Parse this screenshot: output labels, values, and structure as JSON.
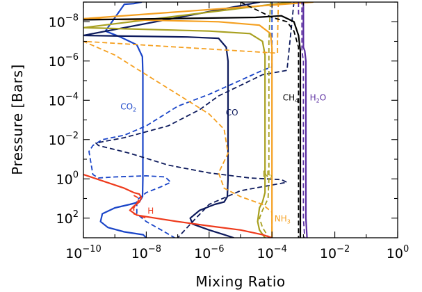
{
  "chart_data": {
    "type": "line",
    "title": "",
    "xlabel": "Mixing Ratio",
    "ylabel": "Pressure [Bars]",
    "x_scale": "log",
    "y_scale": "log",
    "y_inverted": true,
    "xlim": [
      1e-10,
      1
    ],
    "ylim": [
      1000,
      1e-09
    ],
    "x_ticks": [
      {
        "base": "10",
        "exp": "−10",
        "value": 1e-10
      },
      {
        "base": "10",
        "exp": "−8",
        "value": 1e-08
      },
      {
        "base": "10",
        "exp": "−6",
        "value": 1e-06
      },
      {
        "base": "10",
        "exp": "−4",
        "value": 0.0001
      },
      {
        "base": "10",
        "exp": "−2",
        "value": 0.01
      },
      {
        "base": "10",
        "exp": "0",
        "value": 1
      }
    ],
    "y_ticks": [
      {
        "base": "10",
        "exp": "−8",
        "value": 1e-08
      },
      {
        "base": "10",
        "exp": "−6",
        "value": 1e-06
      },
      {
        "base": "10",
        "exp": "−4",
        "value": 0.0001
      },
      {
        "base": "10",
        "exp": "−2",
        "value": 0.01
      },
      {
        "base": "10",
        "exp": "0",
        "value": 1
      },
      {
        "base": "10",
        "exp": "2",
        "value": 100
      }
    ],
    "grid": false,
    "legend": "none (inline labels)",
    "series": [
      {
        "name": "CO2",
        "label_main": "CO",
        "label_sub": "2",
        "label_x": 1.5e-09,
        "label_y": 0.0003,
        "color": "#1a45c8",
        "solid": [
          [
            7e-09,
            1e-09
          ],
          [
            4e-09,
            1.2e-09
          ],
          [
            2e-09,
            1.3e-09
          ],
          [
            5e-10,
            3e-08
          ],
          [
            1.5e-09,
            6e-08
          ],
          [
            5e-09,
            1.5e-07
          ],
          [
            7.5e-09,
            6e-07
          ],
          [
            7.8e-09,
            5e-06
          ],
          [
            7.8e-09,
            0.0001
          ],
          [
            7.8e-09,
            0.01
          ],
          [
            7.8e-09,
            1
          ],
          [
            7.6e-09,
            8
          ],
          [
            6e-09,
            15
          ],
          [
            3e-09,
            20
          ],
          [
            1e-09,
            30
          ],
          [
            4e-10,
            60
          ],
          [
            3.5e-10,
            150
          ],
          [
            6e-10,
            300
          ],
          [
            2e-09,
            500
          ],
          [
            8e-09,
            700
          ],
          [
            1e-08,
            1000
          ]
        ],
        "dashed": [
          [
            0.0001,
            1e-09
          ],
          [
            0.0001,
            2e-06
          ],
          [
            5e-05,
            3e-06
          ],
          [
            1e-06,
            5e-05
          ],
          [
            1e-07,
            0.0002
          ],
          [
            1e-08,
            0.002
          ],
          [
            2e-09,
            0.006
          ],
          [
            4e-10,
            0.01
          ],
          [
            2e-10,
            0.02
          ],
          [
            1.5e-10,
            0.04
          ],
          [
            2e-10,
            0.6
          ],
          [
            3e-10,
            0.9
          ],
          [
            1e-09,
            0.8
          ],
          [
            1e-08,
            0.7
          ],
          [
            4e-08,
            0.8
          ],
          [
            6e-08,
            1.5
          ],
          [
            3e-08,
            2.5
          ],
          [
            1e-08,
            5
          ],
          [
            5e-09,
            12
          ],
          [
            5e-09,
            60
          ],
          [
            1e-08,
            150
          ],
          [
            3e-08,
            400
          ],
          [
            8e-08,
            1000
          ]
        ]
      },
      {
        "name": "CO",
        "label_main": "CO",
        "label_sub": "",
        "label_x": 3.4e-06,
        "label_y": 0.0006,
        "color": "#0d1a5c",
        "solid": [
          [
            4e-05,
            1e-09
          ],
          [
            1e-10,
            5e-08
          ],
          [
            2e-07,
            6e-08
          ],
          [
            2e-06,
            7e-08
          ],
          [
            3.5e-06,
            2e-07
          ],
          [
            4e-06,
            1e-06
          ],
          [
            4e-06,
            0.0001
          ],
          [
            4e-06,
            0.01
          ],
          [
            4e-06,
            1
          ],
          [
            3.8e-06,
            8
          ],
          [
            3e-06,
            15
          ],
          [
            1.5e-06,
            20
          ],
          [
            5e-07,
            40
          ],
          [
            2.5e-07,
            100
          ],
          [
            3e-07,
            200
          ],
          [
            1e-06,
            400
          ],
          [
            3e-06,
            700
          ],
          [
            6e-06,
            1000
          ]
        ],
        "dashed": [
          [
            0.0005,
            1e-09
          ],
          [
            0.0003,
            3e-06
          ],
          [
            5e-05,
            5e-06
          ],
          [
            2e-06,
            6e-05
          ],
          [
            5e-07,
            0.0003
          ],
          [
            5e-08,
            0.002
          ],
          [
            2e-09,
            0.008
          ],
          [
            2.5e-10,
            0.015
          ],
          [
            3e-10,
            0.02
          ],
          [
            3e-09,
            0.05
          ],
          [
            5e-08,
            0.2
          ],
          [
            1e-06,
            0.5
          ],
          [
            2e-05,
            0.9
          ],
          [
            0.0002,
            1.1
          ],
          [
            0.0003,
            1.5
          ],
          [
            1e-05,
            4
          ],
          [
            1e-06,
            20
          ],
          [
            3e-07,
            150
          ],
          [
            1e-07,
            1000
          ]
        ]
      },
      {
        "name": "N2",
        "label_main": "N",
        "label_sub": "2",
        "label_x": 5e-05,
        "label_y": 0.8,
        "color": "#a8a020",
        "solid": [
          [
            0.0004,
            1e-09
          ],
          [
            1e-10,
            2e-08
          ],
          [
            1e-06,
            3e-08
          ],
          [
            2e-05,
            4e-08
          ],
          [
            5e-05,
            1e-07
          ],
          [
            6e-05,
            5e-07
          ],
          [
            6e-05,
            0.0001
          ],
          [
            6e-05,
            0.01
          ],
          [
            6e-05,
            1
          ],
          [
            6e-05,
            5
          ],
          [
            5e-05,
            15
          ],
          [
            4e-05,
            30
          ],
          [
            3.5e-05,
            150
          ],
          [
            4e-05,
            400
          ],
          [
            6e-05,
            1000
          ]
        ],
        "dashed": [
          [
            9e-05,
            1e-09
          ],
          [
            8e-05,
            1e-07
          ],
          [
            8e-05,
            0.01
          ],
          [
            8e-05,
            1
          ],
          [
            7.5e-05,
            10
          ],
          [
            5e-05,
            40
          ],
          [
            4e-05,
            100
          ],
          [
            5e-05,
            300
          ],
          [
            8e-05,
            1000
          ]
        ]
      },
      {
        "name": "NH3",
        "label_main": "NH",
        "label_sub": "3",
        "label_x": 0.00012,
        "label_y": 150,
        "color": "#f5a020",
        "solid": [
          [
            0.002,
            1e-09
          ],
          [
            1e-10,
            7e-09
          ],
          [
            2e-06,
            1e-08
          ],
          [
            4e-05,
            1.5e-08
          ],
          [
            9e-05,
            4e-08
          ],
          [
            0.0001,
            2e-07
          ],
          [
            0.0001,
            0.0001
          ],
          [
            0.0001,
            0.01
          ],
          [
            0.0001,
            1
          ],
          [
            0.0001,
            100
          ],
          [
            0.0001,
            1000
          ]
        ],
        "dashed": [
          [
            0.00016,
            1e-09
          ],
          [
            0.00015,
            1e-07
          ],
          [
            0.00015,
            4e-07
          ],
          [
            1e-10,
            1e-07
          ],
          [
            1e-09,
            5e-07
          ],
          [
            1e-08,
            5e-06
          ],
          [
            1e-07,
            5e-05
          ],
          [
            1e-06,
            0.0005
          ],
          [
            3e-06,
            0.003
          ],
          [
            4e-06,
            0.05
          ],
          [
            2e-06,
            0.5
          ],
          [
            3e-06,
            3
          ],
          [
            1e-05,
            8
          ],
          [
            5e-05,
            20
          ],
          [
            0.0001,
            50
          ],
          [
            0.0001,
            1000
          ]
        ]
      },
      {
        "name": "H",
        "label_main": "H",
        "label_sub": "",
        "label_x": 1.1e-08,
        "label_y": 60,
        "color": "#ee3a1c",
        "solid": [
          [
            1e-10,
            0.6
          ],
          [
            2e-09,
            3
          ],
          [
            4e-09,
            5
          ],
          [
            6e-09,
            6
          ],
          [
            7e-09,
            9
          ],
          [
            6e-09,
            15
          ],
          [
            4e-09,
            25
          ],
          [
            3e-09,
            40
          ],
          [
            5e-09,
            70
          ],
          [
            2e-08,
            100
          ],
          [
            1e-07,
            150
          ],
          [
            1e-06,
            250
          ],
          [
            1e-05,
            400
          ],
          [
            5e-05,
            700
          ],
          [
            0.0001,
            1000
          ]
        ],
        "dashed": [
          [
            4e-09,
            7
          ],
          [
            6e-09,
            10
          ],
          [
            5e-09,
            18
          ],
          [
            4e-09,
            30
          ],
          [
            4e-09,
            60
          ],
          [
            1e-08,
            100
          ]
        ]
      },
      {
        "name": "CH4",
        "label_main": "CH",
        "label_sub": "4",
        "label_x": 0.00022,
        "label_y": 0.0001,
        "color": "#000000",
        "solid": [
          [
            1e-10,
            8e-09
          ],
          [
            3e-05,
            6e-09
          ],
          [
            0.0002,
            5e-09
          ],
          [
            0.0005,
            1e-08
          ],
          [
            0.0007,
            5e-08
          ],
          [
            0.0008,
            3e-07
          ],
          [
            0.0008,
            0.0001
          ],
          [
            0.0008,
            0.01
          ],
          [
            0.0008,
            1
          ],
          [
            0.0008,
            100
          ],
          [
            0.0008,
            1000
          ]
        ],
        "dashed": [
          [
            1e-05,
            1e-09
          ],
          [
            0.0001,
            6e-09
          ],
          [
            0.0003,
            1e-08
          ],
          [
            0.0005,
            3e-08
          ],
          [
            0.0007,
            2e-07
          ],
          [
            0.0007,
            0.0001
          ],
          [
            0.0007,
            0.01
          ],
          [
            0.0007,
            1
          ],
          [
            0.0007,
            100
          ],
          [
            0.0007,
            1000
          ]
        ]
      },
      {
        "name": "H2O",
        "label_main": "H",
        "label_sub": "2",
        "label_tail": "O",
        "label_x": 0.0016,
        "label_y": 0.0001,
        "color": "#5a2da0",
        "solid": [
          [
            0.001,
            1e-09
          ],
          [
            0.001,
            2e-07
          ],
          [
            0.0011,
            3e-07
          ],
          [
            0.0012,
            1e-06
          ],
          [
            0.0012,
            0.0001
          ],
          [
            0.0012,
            0.01
          ],
          [
            0.0012,
            1
          ],
          [
            0.0012,
            100
          ],
          [
            0.0013,
            1000
          ]
        ],
        "dashed": [
          [
            0.0007,
            1e-09
          ],
          [
            0.0007,
            4e-09
          ],
          [
            0.0009,
            3e-09
          ],
          [
            0.0009,
            1e-09
          ],
          [
            0.0009,
            3e-07
          ],
          [
            0.001,
            1e-06
          ],
          [
            0.001,
            0.0001
          ],
          [
            0.001,
            0.01
          ],
          [
            0.001,
            1
          ],
          [
            0.001,
            100
          ],
          [
            0.0011,
            1000
          ]
        ]
      }
    ]
  }
}
